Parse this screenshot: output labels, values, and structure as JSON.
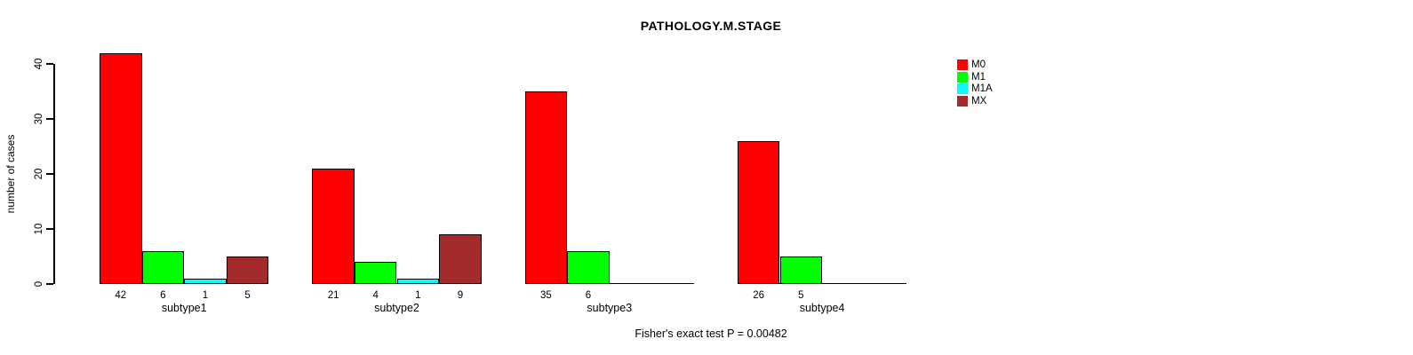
{
  "chart_data": {
    "type": "bar",
    "title": "PATHOLOGY.M.STAGE",
    "xlabel": "",
    "ylabel": "number of cases",
    "annotation": "Fisher's exact test P = 0.00482",
    "categories": [
      "subtype1",
      "subtype2",
      "subtype3",
      "subtype4"
    ],
    "series": [
      {
        "name": "M0",
        "color": "#FF0000",
        "values": [
          42,
          21,
          35,
          26
        ]
      },
      {
        "name": "M1",
        "color": "#00FF00",
        "values": [
          6,
          4,
          6,
          5
        ]
      },
      {
        "name": "M1A",
        "color": "#00FFFF",
        "values": [
          1,
          1,
          0,
          0
        ]
      },
      {
        "name": "MX",
        "color": "#A52A2A",
        "values": [
          5,
          9,
          0,
          0
        ]
      }
    ],
    "bar_value_labels": [
      [
        "42",
        "6",
        "1",
        "5"
      ],
      [
        "21",
        "4",
        "1",
        "9"
      ],
      [
        "35",
        "6",
        "",
        ""
      ],
      [
        "26",
        "5",
        "",
        ""
      ]
    ],
    "yticks": [
      0,
      10,
      20,
      30,
      40
    ],
    "ylim": [
      0,
      42
    ],
    "grid": false,
    "legend_position": "top-right",
    "bar_border_color": "#000000",
    "axis_color": "#000000"
  }
}
